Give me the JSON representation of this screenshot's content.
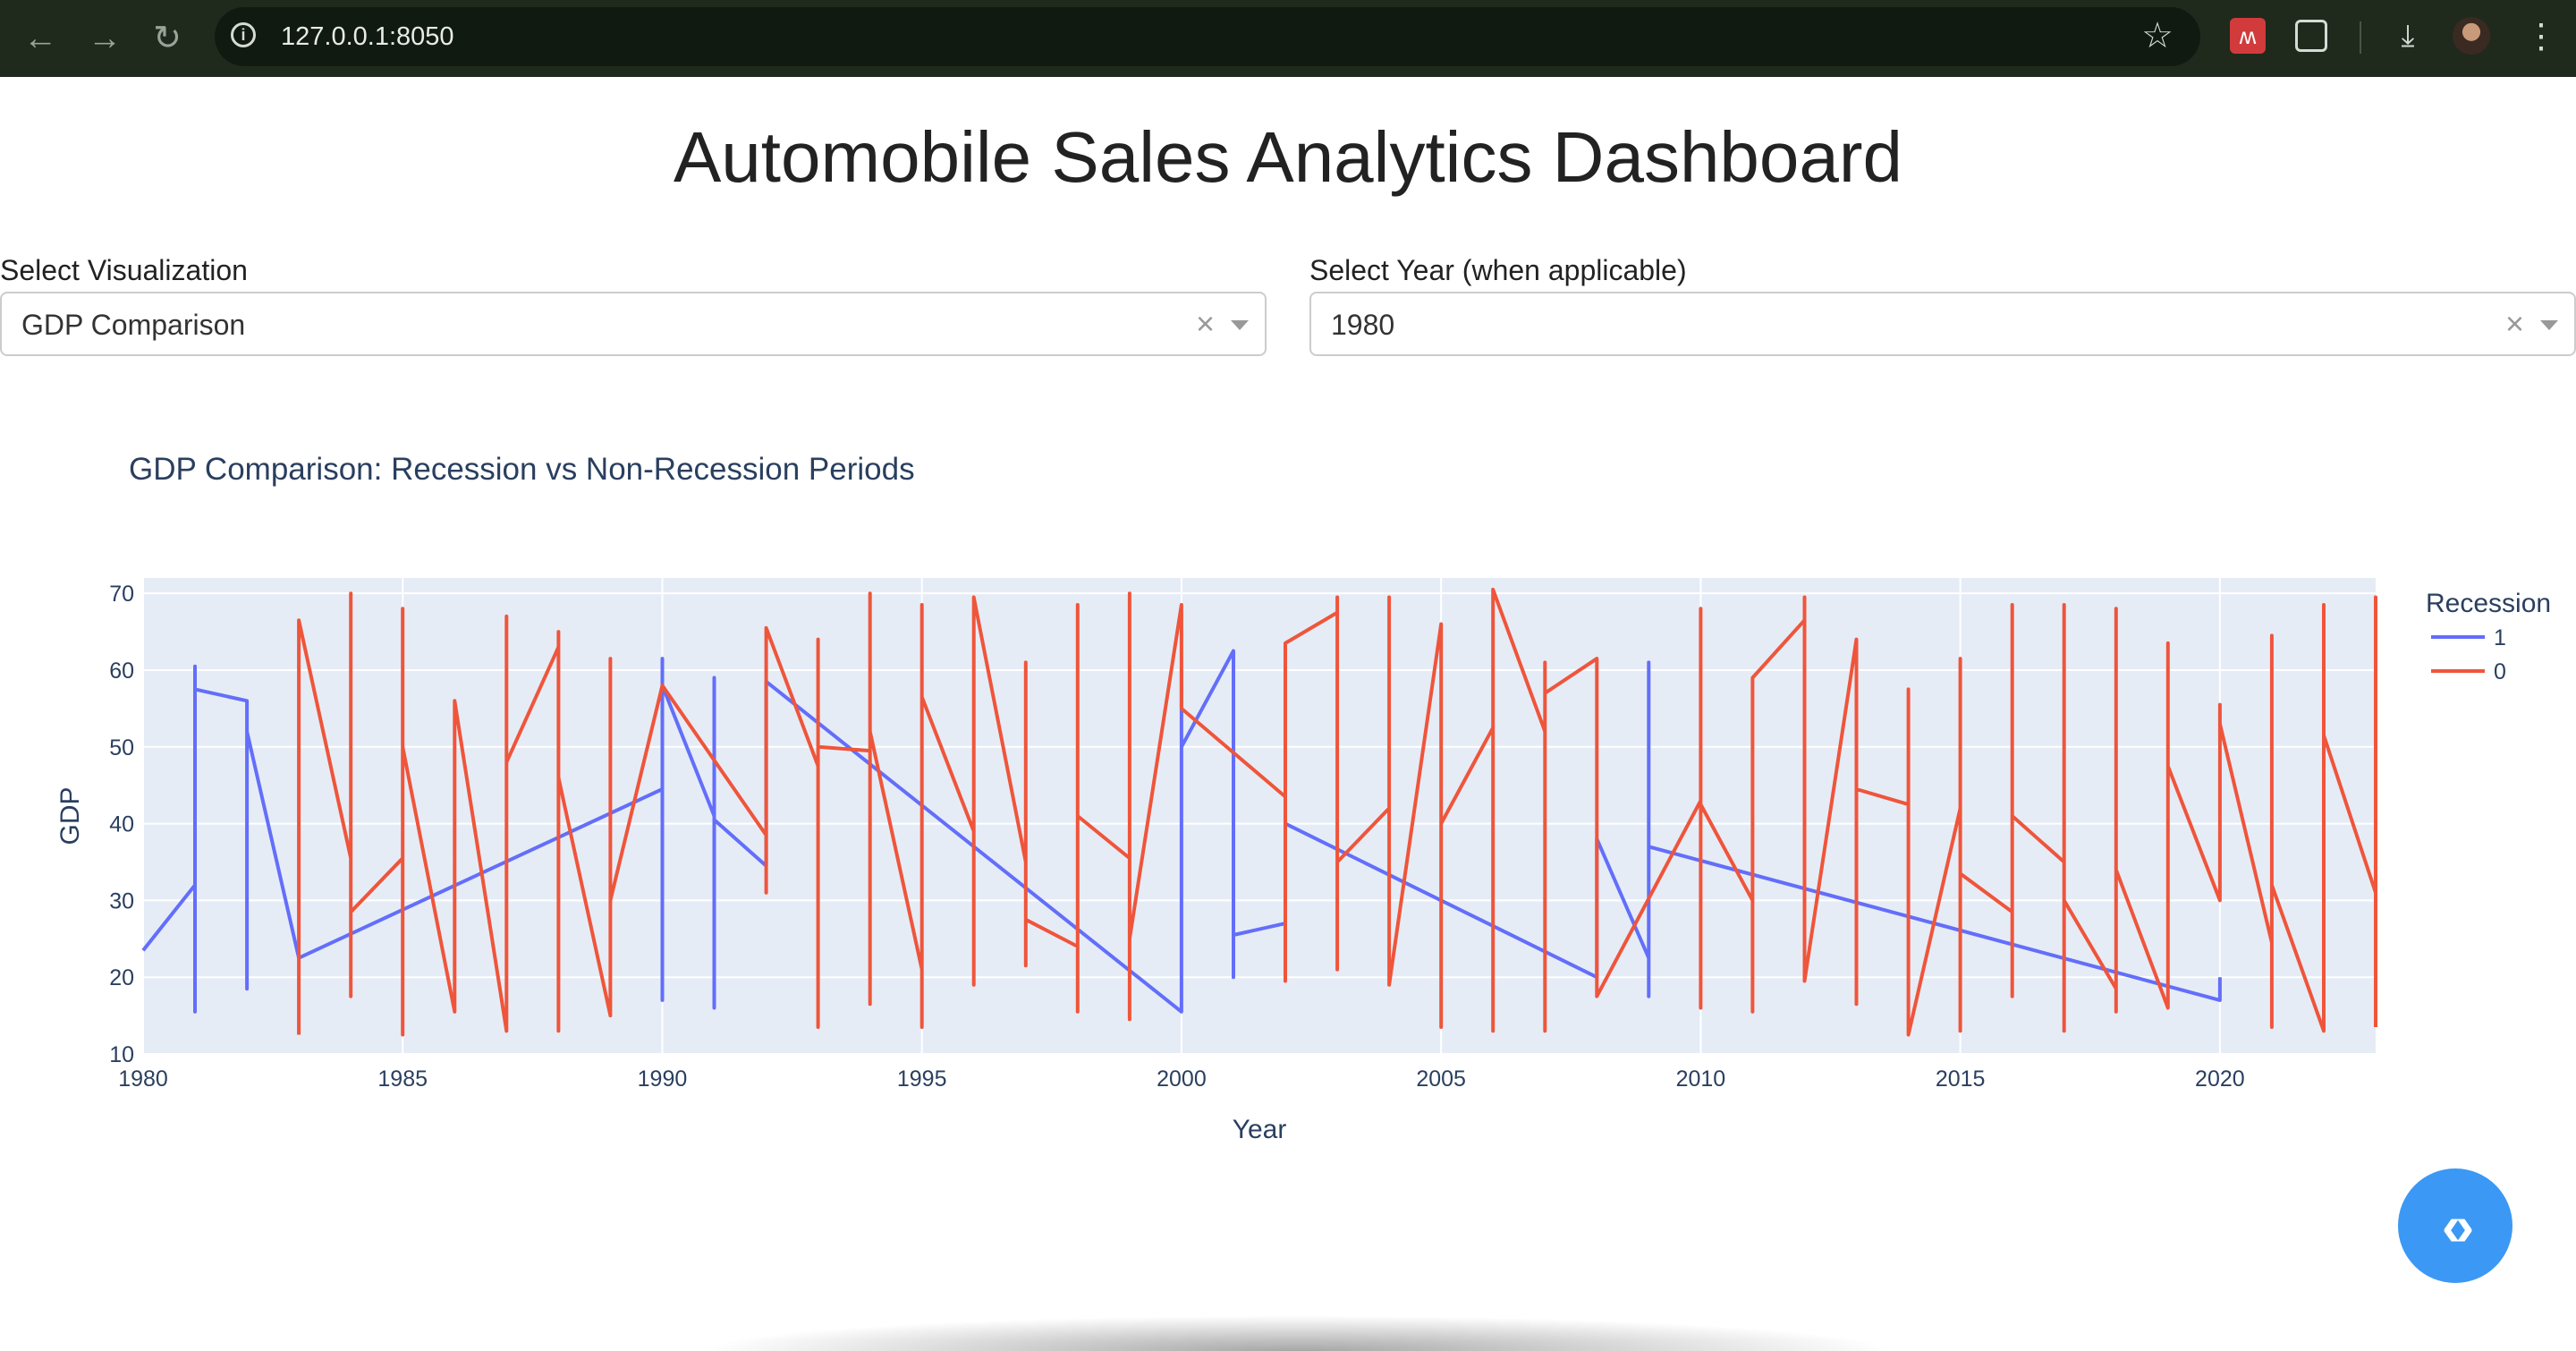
{
  "browser": {
    "url": "127.0.0.1:8050",
    "back_icon": "back-arrow-icon",
    "forward_icon": "forward-arrow-icon",
    "reload_icon": "reload-icon"
  },
  "page": {
    "title": "Automobile Sales Analytics Dashboard"
  },
  "controls": {
    "visualization": {
      "label": "Select Visualization",
      "value": "GDP Comparison",
      "clear": "×"
    },
    "year": {
      "label": "Select Year (when applicable)",
      "value": "1980",
      "clear": "×"
    }
  },
  "colors": {
    "recession_1": "#636efa",
    "recession_0": "#ef553b",
    "plot_bg": "#e5ecf6",
    "fab": "#3b98f5"
  },
  "chart_data": {
    "type": "line",
    "title": "GDP Comparison: Recession vs Non-Recession Periods",
    "xlabel": "Year",
    "ylabel": "GDP",
    "xlim": [
      1980,
      2023
    ],
    "ylim": [
      10,
      72
    ],
    "x_ticks": [
      1980,
      1985,
      1990,
      1995,
      2000,
      2005,
      2010,
      2015,
      2020
    ],
    "y_ticks": [
      10,
      20,
      30,
      40,
      50,
      60,
      70
    ],
    "grid": true,
    "legend": {
      "title": "Recession",
      "position": "right"
    },
    "series": [
      {
        "name": "1",
        "color": "#636efa",
        "points": [
          [
            1980,
            23.5
          ],
          [
            1981,
            32
          ],
          [
            1981,
            60.5
          ],
          [
            1981,
            15.5
          ],
          [
            1981,
            57.5
          ],
          [
            1982,
            56
          ],
          [
            1982,
            18.5
          ],
          [
            1982,
            52
          ],
          [
            1983,
            22.5
          ],
          [
            1990,
            44.5
          ],
          [
            1990,
            61.5
          ],
          [
            1990,
            17
          ],
          [
            1990,
            58
          ],
          [
            1991,
            41
          ],
          [
            1991,
            59
          ],
          [
            1991,
            16
          ],
          [
            1991,
            27
          ],
          [
            1991,
            40.5
          ],
          [
            1992,
            34.5
          ],
          [
            1992,
            58.5
          ],
          [
            2000,
            15.5
          ],
          [
            2000,
            50.5
          ],
          [
            2000,
            60
          ],
          [
            2000,
            50
          ],
          [
            2001,
            62.5
          ],
          [
            2001,
            20
          ],
          [
            2001,
            25.5
          ],
          [
            2002,
            27
          ],
          null,
          [
            2002,
            40
          ],
          [
            2008,
            20
          ],
          [
            2008,
            38
          ],
          [
            2009,
            22.5
          ],
          [
            2009,
            61
          ],
          [
            2009,
            17.5
          ],
          [
            2009,
            37
          ],
          [
            2020,
            17
          ],
          [
            2020,
            20
          ]
        ]
      },
      {
        "name": "0",
        "color": "#ef553b",
        "points": [
          [
            1983,
            12.5
          ],
          [
            1983,
            66.5
          ],
          [
            1984,
            35.5
          ],
          [
            1984,
            70
          ],
          [
            1984,
            17.5
          ],
          [
            1984,
            28.5
          ],
          [
            1985,
            35.5
          ],
          [
            1985,
            12.5
          ],
          [
            1985,
            68
          ],
          [
            1985,
            50
          ],
          [
            1986,
            15.5
          ],
          [
            1986,
            56
          ],
          [
            1987,
            13
          ],
          [
            1987,
            67
          ],
          [
            1987,
            48
          ],
          [
            1988,
            63
          ],
          [
            1988,
            65
          ],
          [
            1988,
            13
          ],
          [
            1988,
            46
          ],
          [
            1989,
            15
          ],
          [
            1989,
            61.5
          ],
          [
            1989,
            30
          ],
          [
            1990,
            58
          ],
          [
            1992,
            38.5
          ],
          [
            1992,
            31
          ],
          [
            1992,
            65.5
          ],
          [
            1993,
            47.5
          ],
          [
            1993,
            64
          ],
          [
            1993,
            13.5
          ],
          [
            1993,
            50
          ],
          [
            1994,
            49.5
          ],
          [
            1994,
            70
          ],
          [
            1994,
            16.5
          ],
          [
            1994,
            52
          ],
          [
            1995,
            21
          ],
          [
            1995,
            68.5
          ],
          [
            1995,
            13.5
          ],
          [
            1995,
            56.5
          ],
          [
            1996,
            39
          ],
          [
            1996,
            19
          ],
          [
            1996,
            69.5
          ],
          [
            1997,
            35
          ],
          [
            1997,
            61
          ],
          [
            1997,
            21.5
          ],
          [
            1997,
            27.5
          ],
          [
            1998,
            24
          ],
          [
            1998,
            68.5
          ],
          [
            1998,
            15.5
          ],
          [
            1998,
            41
          ],
          [
            1999,
            35.5
          ],
          [
            1999,
            70
          ],
          [
            1999,
            14.5
          ],
          [
            1999,
            25
          ],
          [
            2000,
            68.5
          ],
          [
            2000,
            55
          ],
          [
            2002,
            43.5
          ],
          [
            2002,
            19.5
          ],
          [
            2002,
            63.5
          ],
          [
            2003,
            67.5
          ],
          [
            2003,
            69.5
          ],
          [
            2003,
            21
          ],
          [
            2003,
            35
          ],
          [
            2004,
            42
          ],
          [
            2004,
            69.5
          ],
          [
            2004,
            19
          ],
          [
            2005,
            66
          ],
          [
            2005,
            13.5
          ],
          [
            2005,
            40
          ],
          [
            2006,
            52.5
          ],
          [
            2006,
            13
          ],
          [
            2006,
            70.5
          ],
          [
            2007,
            52
          ],
          [
            2007,
            61
          ],
          [
            2007,
            13
          ],
          [
            2007,
            57
          ],
          [
            2008,
            61.5
          ],
          [
            2008,
            17.5
          ],
          [
            2010,
            43
          ],
          [
            2010,
            68
          ],
          [
            2010,
            16
          ],
          [
            2010,
            42.5
          ],
          [
            2011,
            30
          ],
          [
            2011,
            15.5
          ],
          [
            2011,
            59
          ],
          [
            2012,
            66.5
          ],
          [
            2012,
            69.5
          ],
          [
            2012,
            19.5
          ],
          [
            2013,
            64
          ],
          [
            2013,
            16.5
          ],
          [
            2013,
            44.5
          ],
          [
            2014,
            42.5
          ],
          [
            2014,
            57.5
          ],
          [
            2014,
            12.5
          ],
          [
            2015,
            42
          ],
          [
            2015,
            61.5
          ],
          [
            2015,
            13
          ],
          [
            2015,
            33.5
          ],
          [
            2016,
            28.5
          ],
          [
            2016,
            68.5
          ],
          [
            2016,
            17.5
          ],
          [
            2016,
            41
          ],
          [
            2017,
            35
          ],
          [
            2017,
            68.5
          ],
          [
            2017,
            13
          ],
          [
            2017,
            30
          ],
          [
            2018,
            18.5
          ],
          [
            2018,
            68
          ],
          [
            2018,
            15.5
          ],
          [
            2018,
            34
          ],
          [
            2019,
            16
          ],
          [
            2019,
            63.5
          ],
          [
            2019,
            47.5
          ],
          [
            2020,
            30
          ],
          [
            2020,
            55.5
          ],
          [
            2020,
            53
          ],
          [
            2021,
            24.5
          ],
          [
            2021,
            64.5
          ],
          [
            2021,
            13.5
          ],
          [
            2021,
            32
          ],
          [
            2022,
            13
          ],
          [
            2022,
            68.5
          ],
          [
            2022,
            51.5
          ],
          [
            2023,
            31
          ],
          [
            2023,
            69.5
          ],
          [
            2023,
            13.5
          ]
        ]
      }
    ]
  }
}
